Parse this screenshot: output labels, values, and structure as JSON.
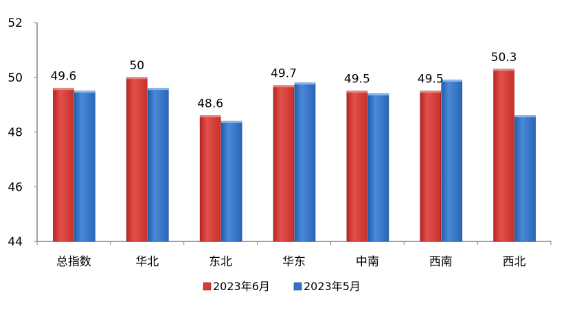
{
  "chart_data": {
    "type": "bar",
    "categories": [
      "总指数",
      "华北",
      "东北",
      "华东",
      "中南",
      "西南",
      "西北"
    ],
    "series": [
      {
        "name": "2023年6月",
        "values": [
          49.6,
          50.0,
          48.6,
          49.7,
          49.5,
          49.5,
          50.3
        ],
        "color": "#d93a36",
        "labels": [
          "49.6",
          "50",
          "48.6",
          "49.7",
          "49.5",
          "49.5",
          "50.3"
        ]
      },
      {
        "name": "2023年5月",
        "values": [
          49.5,
          49.6,
          48.4,
          49.8,
          49.4,
          49.9,
          48.6
        ],
        "color": "#2f73c9"
      }
    ],
    "y_ticks": [
      "44",
      "46",
      "48",
      "50",
      "52"
    ],
    "ylim": [
      44,
      52
    ],
    "grid": false,
    "legend_position": "bottom"
  }
}
